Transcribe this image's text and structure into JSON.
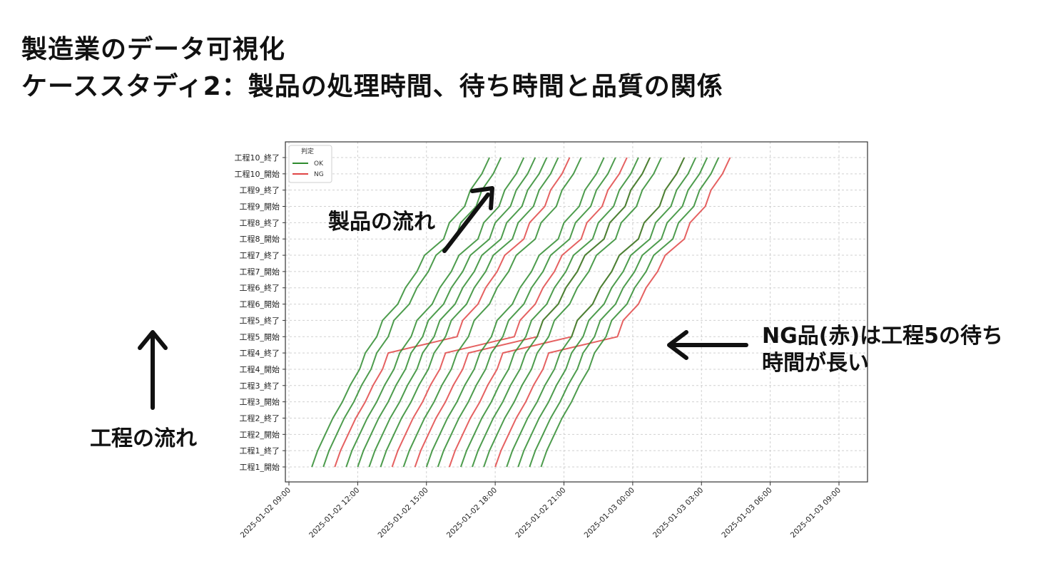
{
  "slide": {
    "title_line1": "製造業のデータ可視化",
    "title_line2": "ケーススタディ2：製品の処理時間、待ち時間と品質の関係"
  },
  "annotations": {
    "product_flow": "製品の流れ",
    "process_flow": "工程の流れ",
    "ng_note_line1": "NG品(赤)は工程5の待ち",
    "ng_note_line2": "時間が長い"
  },
  "colors": {
    "ok": "#2e8b2e",
    "ng": "#e04545",
    "axis": "#333333",
    "grid": "#d0d0d0"
  },
  "chart_data": {
    "type": "line",
    "title": "",
    "xlabel": "",
    "ylabel": "",
    "x_ticks": [
      "2025-01-02 09:00",
      "2025-01-02 12:00",
      "2025-01-02 15:00",
      "2025-01-02 18:00",
      "2025-01-02 21:00",
      "2025-01-03 00:00",
      "2025-01-03 03:00",
      "2025-01-03 06:00",
      "2025-01-03 09:00"
    ],
    "xlim": [
      "2025-01-02 09:00",
      "2025-01-03 10:15"
    ],
    "y_categories": [
      "工程1_開始",
      "工程1_終了",
      "工程2_開始",
      "工程2_終了",
      "工程3_開始",
      "工程3_終了",
      "工程4_開始",
      "工程4_終了",
      "工程5_開始",
      "工程5_終了",
      "工程6_開始",
      "工程6_終了",
      "工程7_開始",
      "工程7_終了",
      "工程8_開始",
      "工程8_終了",
      "工程9_開始",
      "工程9_終了",
      "工程10_開始",
      "工程10_終了"
    ],
    "legend": {
      "title": "判定",
      "entries": [
        "OK",
        "NG"
      ],
      "placement": "top-left"
    },
    "grid": true,
    "start_times": [
      "2025-01-02 10:00",
      "2025-01-02 10:30",
      "2025-01-02 11:00",
      "2025-01-02 11:30",
      "2025-01-02 12:00",
      "2025-01-02 12:30",
      "2025-01-02 13:00",
      "2025-01-02 13:30",
      "2025-01-02 14:00",
      "2025-01-02 14:30",
      "2025-01-02 15:00",
      "2025-01-02 15:30",
      "2025-01-02 16:00",
      "2025-01-02 16:30",
      "2025-01-02 17:00",
      "2025-01-02 17:30",
      "2025-01-02 18:00",
      "2025-01-02 18:30",
      "2025-01-02 19:00",
      "2025-01-02 19:30",
      "2025-01-02 20:00"
    ],
    "judgements": [
      "OK",
      "OK",
      "NG",
      "OK",
      "OK",
      "OK",
      "OK",
      "NG",
      "OK",
      "NG",
      "OK",
      "OK",
      "NG",
      "OK",
      "OK",
      "OK",
      "NG",
      "OK",
      "OK",
      "OK",
      "OK"
    ],
    "process_durations_min": [
      15,
      20,
      20,
      15,
      15,
      20,
      20,
      15,
      15,
      20
    ],
    "wait_before_process_min": [
      20,
      25,
      25,
      30,
      40,
      30,
      50,
      40,
      30
    ],
    "ng_wait_before_process5_min": 180
  }
}
